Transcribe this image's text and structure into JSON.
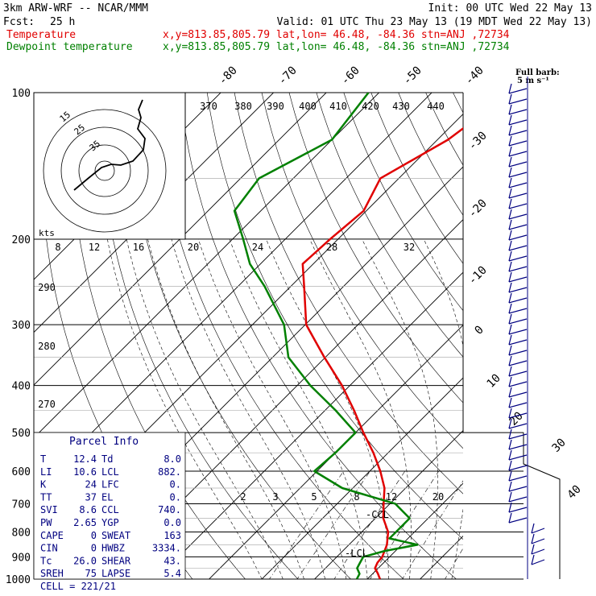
{
  "header": {
    "line1_left": "3km ARW-WRF -- NCAR/MMM",
    "line1_right": "Init: 00 UTC Wed 22 May 13",
    "fcst_label": "Fcst:",
    "fcst_value": "25 h",
    "valid": "Valid: 01 UTC Thu 23 May 13 (19 MDT Wed 22 May 13)",
    "temp_label": "Temperature",
    "temp_loc": "x,y=813.85,805.79   lat,lon= 46.48, -84.36  stn=ANJ ,72734",
    "dew_label": "Dewpoint temperature",
    "dew_loc": "x,y=813.85,805.79   lat,lon= 46.48, -84.36  stn=ANJ ,72734"
  },
  "colors": {
    "temperature": "#e00000",
    "dewpoint": "#008000",
    "isobar": "#000000",
    "grid": "#000000",
    "parcel": "#000080",
    "wind_barb": "#000080",
    "header_text": "#000000"
  },
  "barb_legend": {
    "line1": "Full barb:",
    "line2": "5 m s⁻¹"
  },
  "hodograph": {
    "units_label": "kts",
    "ring_labels": [
      "15",
      "25",
      "35"
    ],
    "theta_labels": [
      "370",
      "380",
      "390",
      "400",
      "410",
      "420",
      "430",
      "440"
    ],
    "theta_low_labels": [
      "290",
      "280",
      "270"
    ]
  },
  "chart_data": {
    "type": "line",
    "title": "",
    "xlabel": "",
    "ylabel": "",
    "pressure_levels": [
      100,
      200,
      300,
      400,
      500,
      600,
      700,
      800,
      900,
      1000
    ],
    "isotherm_labels": [
      -80,
      -70,
      -60,
      -50,
      -40,
      -30,
      -20,
      -10,
      0,
      10,
      20,
      30,
      40
    ],
    "mixing_ratio_labels_top": [
      "8",
      "12",
      "16",
      "20",
      "24",
      "28",
      "32"
    ],
    "mixing_ratio_labels_low": [
      "2",
      "3",
      "5",
      "8",
      "12",
      "20"
    ],
    "series": [
      {
        "name": "Temperature",
        "p": [
          1000,
          975,
          950,
          925,
          900,
          850,
          800,
          750,
          700,
          650,
          600,
          550,
          500,
          450,
          400,
          350,
          300,
          250,
          225,
          200,
          175,
          150,
          125,
          100
        ],
        "t": [
          12.4,
          11.0,
          9.4,
          8.8,
          8.6,
          7.2,
          5.0,
          1.5,
          -1.2,
          -4.0,
          -8.0,
          -12.8,
          -18.5,
          -24.5,
          -31.5,
          -40.2,
          -49.8,
          -57.5,
          -62.0,
          -61.5,
          -60.5,
          -63.5,
          -58.0,
          -55.0
        ]
      },
      {
        "name": "Dewpoint temperature",
        "p": [
          1000,
          975,
          950,
          925,
          900,
          875,
          850,
          825,
          800,
          750,
          700,
          650,
          600,
          550,
          500,
          450,
          400,
          350,
          300,
          250,
          225,
          200,
          175,
          150,
          125,
          100
        ],
        "t": [
          8.0,
          7.5,
          6.0,
          5.5,
          5.0,
          8.0,
          13.0,
          6.5,
          6.5,
          6.5,
          1.0,
          -12.0,
          -20.5,
          -20.0,
          -20.0,
          -28.0,
          -37.5,
          -47.0,
          -54.0,
          -65.0,
          -72.0,
          -78.0,
          -85.0,
          -86.5,
          -80.0,
          -82.0
        ]
      }
    ],
    "levels_marked": [
      "LCL",
      "CCL"
    ],
    "parcel_info": {
      "title": "Parcel Info",
      "rows": [
        [
          "T",
          "12.4",
          "Td",
          "8.0"
        ],
        [
          "LI",
          "10.6",
          "LCL",
          "882."
        ],
        [
          "K",
          "24",
          "LFC",
          "0."
        ],
        [
          "TT",
          "37",
          "EL",
          "0."
        ],
        [
          "SVI",
          "8.6",
          "CCL",
          "740."
        ],
        [
          "PW",
          "2.65",
          "YGP",
          "0.0"
        ],
        [
          "CAPE",
          "0",
          "SWEAT",
          "163"
        ],
        [
          "CIN",
          "0",
          "HWBZ",
          "3334."
        ],
        [
          "Tc",
          "26.0",
          "SHEAR",
          "43."
        ],
        [
          "SREH",
          "75",
          "LAPSE",
          "5.4"
        ]
      ],
      "cell_label": "CELL",
      "cell_value": "221/21"
    }
  }
}
